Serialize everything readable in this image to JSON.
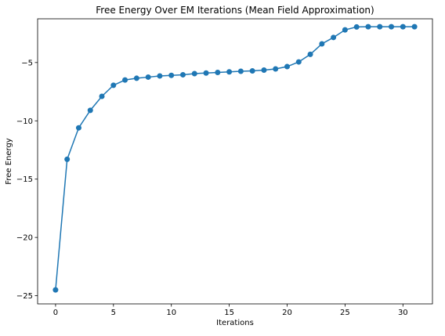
{
  "chart_data": {
    "type": "line",
    "title": "Free Energy Over EM Iterations (Mean Field Approximation)",
    "xlabel": "Iterations",
    "ylabel": "Free Energy",
    "xlim": [
      -1.55,
      32.55
    ],
    "ylim": [
      -25.7,
      -1.25
    ],
    "xticks": [
      0,
      5,
      10,
      15,
      20,
      25,
      30
    ],
    "yticks": [
      -25,
      -20,
      -15,
      -10,
      -5
    ],
    "grid": false,
    "color": "#1f77b4",
    "markers": "circle",
    "series": [
      {
        "x": [
          0,
          1,
          2,
          3,
          4,
          5,
          6,
          7,
          8,
          9,
          10,
          11,
          12,
          13,
          14,
          15,
          16,
          17,
          18,
          19,
          20,
          21,
          22,
          23,
          24,
          25,
          26,
          27,
          28,
          29,
          30,
          31
        ],
        "y": [
          -24.5,
          -13.3,
          -10.6,
          -9.1,
          -7.9,
          -6.95,
          -6.5,
          -6.35,
          -6.25,
          -6.15,
          -6.1,
          -6.05,
          -5.95,
          -5.9,
          -5.85,
          -5.8,
          -5.75,
          -5.72,
          -5.65,
          -5.55,
          -5.35,
          -4.95,
          -4.3,
          -3.4,
          -2.85,
          -2.2,
          -1.95,
          -1.93,
          -1.93,
          -1.93,
          -1.93,
          -1.93
        ]
      }
    ]
  }
}
